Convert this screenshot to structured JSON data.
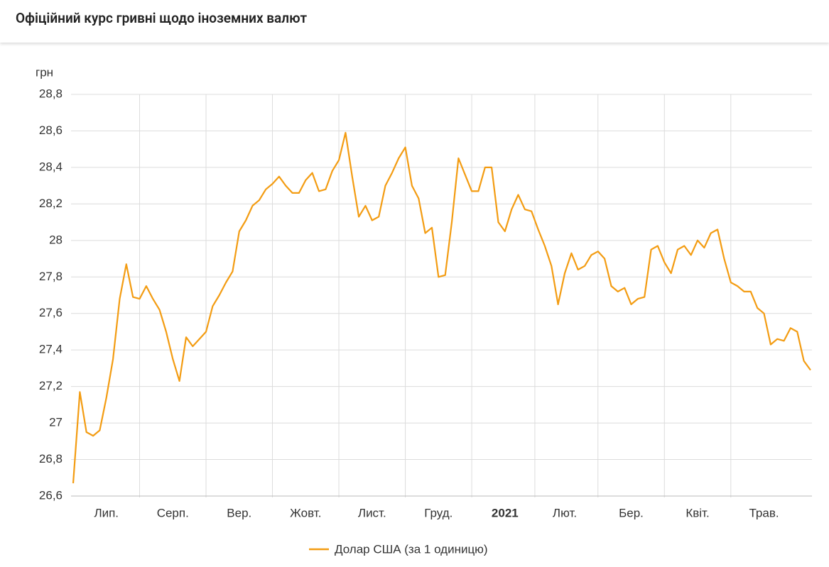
{
  "header": {
    "title": "Офіційний курс гривні щодо іноземних валют"
  },
  "chart_data": {
    "type": "line",
    "y_label": "грн",
    "categories": [
      null,
      null,
      null,
      null,
      null,
      "Лип.",
      null,
      null,
      null,
      null,
      null,
      null,
      null,
      null,
      null,
      "Серп.",
      null,
      null,
      null,
      null,
      null,
      null,
      null,
      null,
      null,
      "Вер.",
      null,
      null,
      null,
      null,
      null,
      null,
      null,
      null,
      null,
      "Жовт.",
      null,
      null,
      null,
      null,
      null,
      null,
      null,
      null,
      null,
      "Лист.",
      null,
      null,
      null,
      null,
      null,
      null,
      null,
      null,
      null,
      "Груд.",
      null,
      null,
      null,
      null,
      null,
      null,
      null,
      null,
      null,
      "2021",
      null,
      null,
      null,
      null,
      null,
      null,
      null,
      null,
      "Лют.",
      null,
      null,
      null,
      null,
      null,
      null,
      null,
      null,
      null,
      "Бер.",
      null,
      null,
      null,
      null,
      null,
      null,
      null,
      null,
      null,
      "Квіт.",
      null,
      null,
      null,
      null,
      null,
      null,
      null,
      null,
      null,
      "Трав.",
      null,
      null,
      null,
      null,
      null,
      null,
      null
    ],
    "series": [
      {
        "name": "Долар США (за 1 одиницю)",
        "color": "#f39c12",
        "values": [
          26.67,
          27.17,
          26.95,
          26.93,
          26.96,
          27.14,
          27.35,
          27.68,
          27.87,
          27.69,
          27.68,
          27.75,
          27.68,
          27.62,
          27.5,
          27.35,
          27.23,
          27.47,
          27.42,
          27.46,
          27.5,
          27.64,
          27.7,
          27.77,
          27.83,
          28.05,
          28.11,
          28.19,
          28.22,
          28.28,
          28.31,
          28.35,
          28.3,
          28.26,
          28.26,
          28.33,
          28.37,
          28.27,
          28.28,
          28.38,
          28.44,
          28.59,
          28.35,
          28.13,
          28.19,
          28.11,
          28.13,
          28.3,
          28.37,
          28.45,
          28.51,
          28.3,
          28.23,
          28.04,
          28.07,
          27.8,
          27.81,
          28.1,
          28.45,
          28.36,
          28.27,
          28.27,
          28.4,
          28.4,
          28.1,
          28.05,
          28.17,
          28.25,
          28.17,
          28.16,
          28.06,
          27.97,
          27.86,
          27.65,
          27.82,
          27.93,
          27.84,
          27.86,
          27.92,
          27.94,
          27.9,
          27.75,
          27.72,
          27.74,
          27.65,
          27.68,
          27.69,
          27.95,
          27.97,
          27.88,
          27.82,
          27.95,
          27.97,
          27.92,
          28.0,
          27.96,
          28.04,
          28.06,
          27.9,
          27.77,
          27.75,
          27.72,
          27.72,
          27.63,
          27.6,
          27.43,
          27.46,
          27.45,
          27.52,
          27.5,
          27.34,
          27.29
        ]
      }
    ],
    "ylim": [
      26.6,
      28.8
    ],
    "yticks": [
      {
        "value": 26.6,
        "label": "26,6"
      },
      {
        "value": 26.8,
        "label": "26,8"
      },
      27,
      {
        "value": 27.2,
        "label": "27,2"
      },
      {
        "value": 27.4,
        "label": "27,4"
      },
      {
        "value": 27.6,
        "label": "27,6"
      },
      {
        "value": 27.8,
        "label": "27,8"
      },
      28,
      {
        "value": 28.2,
        "label": "28,2"
      },
      {
        "value": 28.4,
        "label": "28,4"
      },
      {
        "value": 28.6,
        "label": "28,6"
      },
      {
        "value": 28.8,
        "label": "28,8"
      }
    ],
    "grid": true,
    "legend": "bottom"
  }
}
